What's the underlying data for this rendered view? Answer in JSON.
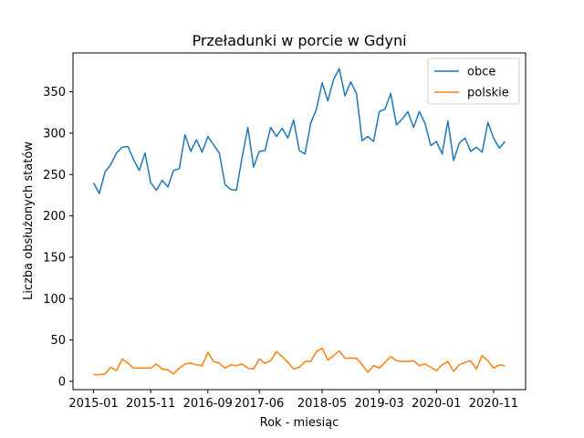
{
  "chart_data": {
    "type": "line",
    "title": "Przeładunki w porcie w Gdyni",
    "xlabel": "Rok - miesiąc",
    "ylabel": "Liczba obsłużonych statów",
    "x_tick_labels": [
      "2015-01",
      "2015-11",
      "2016-09",
      "2017-06",
      "2018-05",
      "2019-03",
      "2020-01",
      "2020-11"
    ],
    "x_tick_index": [
      0,
      10,
      20,
      29,
      40,
      50,
      60,
      70
    ],
    "y_ticks": [
      0,
      50,
      100,
      150,
      200,
      250,
      300,
      350
    ],
    "ylim": [
      -10,
      397
    ],
    "xlim": [
      -3.6,
      75.6
    ],
    "grid": false,
    "legend_position": "upper right",
    "series": [
      {
        "name": "obce",
        "color": "#1f77b4",
        "values": [
          240,
          227,
          253,
          262,
          276,
          283,
          284,
          268,
          255,
          276,
          240,
          231,
          243,
          235,
          255,
          257,
          298,
          278,
          292,
          277,
          296,
          286,
          276,
          238,
          232,
          231,
          271,
          307,
          259,
          278,
          279,
          307,
          296,
          306,
          294,
          316,
          279,
          275,
          312,
          329,
          361,
          339,
          365,
          378,
          345,
          362,
          348,
          291,
          296,
          290,
          326,
          329,
          348,
          310,
          317,
          326,
          307,
          326,
          312,
          285,
          290,
          275,
          315,
          267,
          288,
          294,
          278,
          283,
          277,
          313,
          294,
          282,
          290
        ]
      },
      {
        "name": "polskie",
        "color": "#ff7f0e",
        "values": [
          8,
          8,
          9,
          17,
          13,
          27,
          22,
          16,
          16,
          16,
          16,
          21,
          15,
          14,
          9,
          16,
          21,
          22,
          20,
          19,
          35,
          24,
          22,
          16,
          20,
          19,
          21,
          16,
          15,
          27,
          22,
          25,
          36,
          30,
          23,
          15,
          17,
          24,
          24,
          36,
          40,
          26,
          31,
          37,
          28,
          28,
          28,
          20,
          11,
          19,
          16,
          23,
          30,
          25,
          24,
          24,
          25,
          19,
          21,
          17,
          13,
          20,
          24,
          12,
          20,
          23,
          25,
          15,
          31,
          25,
          16,
          20,
          19
        ]
      }
    ]
  }
}
